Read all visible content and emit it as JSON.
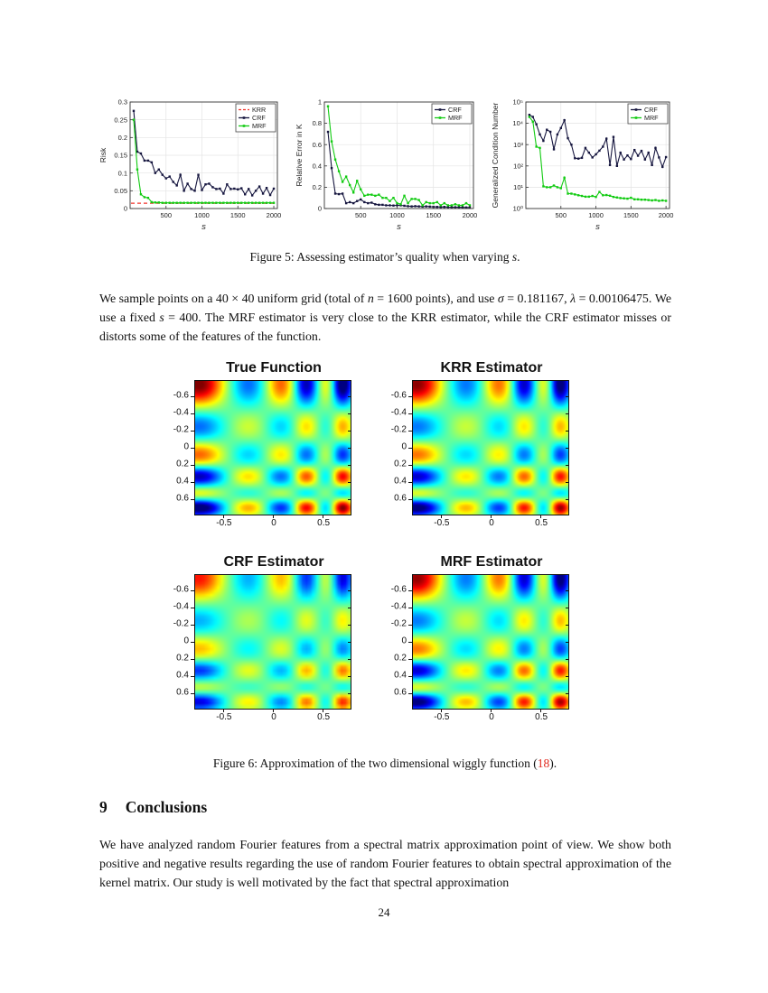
{
  "page": {
    "number": "24"
  },
  "figure5": {
    "caption_text": "Figure 5:  Assessing estimator’s quality when varying ",
    "caption_math": "s",
    "caption_end": "."
  },
  "sampling_paragraph_segments": [
    {
      "t": "We sample points on a 40 × 40 uniform grid (total of "
    },
    {
      "t": "n",
      "i": true
    },
    {
      "t": " = 1600 points), and use "
    },
    {
      "t": "σ",
      "i": true
    },
    {
      "t": " = 0.181167, "
    },
    {
      "t": "λ",
      "i": true
    },
    {
      "t": " = 0.00106475. We use a fixed "
    },
    {
      "t": "s",
      "i": true
    },
    {
      "t": " = 400. The MRF estimator is very close to the KRR estimator, while the CRF estimator misses or distorts some of the features of the function."
    }
  ],
  "figure6": {
    "caption_text": "Figure 6:  Approximation of the two dimensional wiggly function (",
    "caption_link": "18",
    "caption_end": ")."
  },
  "section": {
    "number": "9",
    "title": "Conclusions"
  },
  "conclusions_paragraph": "We have analyzed random Fourier features from a spectral matrix approximation point of view.  We show both positive and negative results regarding the use of random Fourier features to obtain spectral approximation of the kernel matrix. Our study is well motivated by the fact that spectral approximation",
  "chart_data": [
    {
      "type": "line",
      "xlabel": "s",
      "ylabel": "Risk",
      "xlim": [
        0,
        2050
      ],
      "ylim": [
        0,
        0.3
      ],
      "xticks": [
        500,
        1000,
        1500,
        2000
      ],
      "yticks": [
        0,
        0.05,
        0.1,
        0.15,
        0.2,
        0.25,
        0.3
      ],
      "ytick_labels": [
        "0",
        "0.05",
        "0.1",
        "0.15",
        "0.2",
        "0.25",
        "0.3"
      ],
      "grid": true,
      "legend_position": "top-right",
      "x": [
        50,
        100,
        150,
        200,
        250,
        300,
        350,
        400,
        450,
        500,
        550,
        600,
        650,
        700,
        750,
        800,
        850,
        900,
        950,
        1000,
        1050,
        1100,
        1150,
        1200,
        1250,
        1300,
        1350,
        1400,
        1450,
        1500,
        1550,
        1600,
        1650,
        1700,
        1750,
        1800,
        1850,
        1900,
        1950,
        2000
      ],
      "series": [
        {
          "name": "KRR",
          "color": "#f03228",
          "style": "dashed",
          "constant": 0.015
        },
        {
          "name": "CRF",
          "color": "#16163f",
          "style": "solid-marker",
          "values": [
            0.275,
            0.16,
            0.155,
            0.135,
            0.135,
            0.13,
            0.1,
            0.11,
            0.095,
            0.085,
            0.09,
            0.075,
            0.065,
            0.095,
            0.05,
            0.07,
            0.055,
            0.05,
            0.095,
            0.052,
            0.068,
            0.07,
            0.06,
            0.055,
            0.056,
            0.042,
            0.068,
            0.055,
            0.056,
            0.054,
            0.057,
            0.04,
            0.055,
            0.037,
            0.05,
            0.062,
            0.042,
            0.058,
            0.038,
            0.056
          ]
        },
        {
          "name": "MRF",
          "color": "#12cb12",
          "style": "solid-marker",
          "values": [
            0.25,
            0.11,
            0.04,
            0.032,
            0.03,
            0.018,
            0.017,
            0.017,
            0.016,
            0.016,
            0.016,
            0.016,
            0.016,
            0.016,
            0.016,
            0.016,
            0.016,
            0.016,
            0.016,
            0.016,
            0.016,
            0.016,
            0.016,
            0.016,
            0.016,
            0.016,
            0.016,
            0.016,
            0.016,
            0.016,
            0.016,
            0.016,
            0.016,
            0.016,
            0.016,
            0.016,
            0.016,
            0.016,
            0.016,
            0.016
          ]
        }
      ]
    },
    {
      "type": "line",
      "xlabel": "s",
      "ylabel": "Relative Error in K",
      "xlim": [
        0,
        2050
      ],
      "ylim": [
        0,
        1
      ],
      "xticks": [
        500,
        1000,
        1500,
        2000
      ],
      "yticks": [
        0,
        0.2,
        0.4,
        0.6,
        0.8,
        1
      ],
      "ytick_labels": [
        "0",
        "0.2",
        "0.4",
        "0.6",
        "0.8",
        "1"
      ],
      "grid": true,
      "legend_position": "top-right",
      "x": [
        50,
        100,
        150,
        200,
        250,
        300,
        350,
        400,
        450,
        500,
        550,
        600,
        650,
        700,
        750,
        800,
        850,
        900,
        950,
        1000,
        1050,
        1100,
        1150,
        1200,
        1250,
        1300,
        1350,
        1400,
        1450,
        1500,
        1550,
        1600,
        1650,
        1700,
        1750,
        1800,
        1850,
        1900,
        1950,
        2000
      ],
      "series": [
        {
          "name": "CRF",
          "color": "#16163f",
          "style": "solid-marker",
          "values": [
            0.72,
            0.38,
            0.14,
            0.135,
            0.14,
            0.05,
            0.06,
            0.05,
            0.07,
            0.085,
            0.06,
            0.05,
            0.055,
            0.04,
            0.035,
            0.035,
            0.03,
            0.03,
            0.028,
            0.03,
            0.03,
            0.026,
            0.022,
            0.02,
            0.022,
            0.02,
            0.018,
            0.02,
            0.018,
            0.016,
            0.015,
            0.014,
            0.015,
            0.013,
            0.012,
            0.012,
            0.012,
            0.011,
            0.01,
            0.01
          ]
        },
        {
          "name": "MRF",
          "color": "#12cb12",
          "style": "solid-marker",
          "values": [
            0.96,
            0.63,
            0.46,
            0.35,
            0.25,
            0.3,
            0.22,
            0.15,
            0.26,
            0.18,
            0.12,
            0.13,
            0.13,
            0.12,
            0.13,
            0.1,
            0.1,
            0.07,
            0.1,
            0.05,
            0.04,
            0.12,
            0.05,
            0.09,
            0.09,
            0.08,
            0.03,
            0.06,
            0.05,
            0.05,
            0.06,
            0.03,
            0.05,
            0.03,
            0.03,
            0.04,
            0.03,
            0.03,
            0.05,
            0.03
          ]
        }
      ]
    },
    {
      "type": "line",
      "xlabel": "s",
      "ylabel": "Generalized Condition Number",
      "yscale": "log",
      "xlim": [
        0,
        2050
      ],
      "ylim": [
        1,
        100000
      ],
      "xticks": [
        500,
        1000,
        1500,
        2000
      ],
      "yticks": [
        1,
        10,
        100,
        1000,
        10000,
        100000
      ],
      "ytick_labels": [
        "10⁰",
        "10¹",
        "10²",
        "10³",
        "10⁴",
        "10⁵"
      ],
      "grid": true,
      "legend_position": "top-right",
      "x": [
        50,
        100,
        150,
        200,
        250,
        300,
        350,
        400,
        450,
        500,
        550,
        600,
        650,
        700,
        750,
        800,
        850,
        900,
        950,
        1000,
        1050,
        1100,
        1150,
        1200,
        1250,
        1300,
        1350,
        1400,
        1450,
        1500,
        1550,
        1600,
        1650,
        1700,
        1750,
        1800,
        1850,
        1900,
        1950,
        2000
      ],
      "series": [
        {
          "name": "CRF",
          "color": "#16163f",
          "style": "solid-marker",
          "values": [
            25000,
            20000,
            9000,
            3000,
            1500,
            5000,
            4000,
            600,
            3000,
            6000,
            14000,
            2000,
            1000,
            230,
            220,
            240,
            700,
            420,
            250,
            350,
            520,
            800,
            1900,
            110,
            2300,
            100,
            420,
            200,
            310,
            210,
            560,
            300,
            510,
            200,
            420,
            110,
            700,
            250,
            90,
            260
          ]
        },
        {
          "name": "MRF",
          "color": "#12cb12",
          "style": "solid-marker",
          "values": [
            20000,
            12000,
            800,
            700,
            11,
            10,
            10,
            12,
            10,
            9,
            28,
            5,
            5,
            4.6,
            4.2,
            3.9,
            3.6,
            3.6,
            3.9,
            3.5,
            6,
            4.2,
            4.3,
            4,
            3.5,
            3.3,
            3.1,
            3,
            2.9,
            3.2,
            2.7,
            2.7,
            2.6,
            2.6,
            2.5,
            2.4,
            2.5,
            2.3,
            2.4,
            2.3
          ]
        }
      ]
    },
    {
      "type": "heatmap",
      "panels": [
        "True Function",
        "KRR Estimator",
        "CRF Estimator",
        "MRF Estimator"
      ],
      "panel_amplitude": [
        1.0,
        0.96,
        0.72,
        0.94
      ],
      "panel_resolution": [
        [
          92,
          78
        ],
        [
          92,
          78
        ],
        [
          44,
          37
        ],
        [
          92,
          78
        ]
      ],
      "xlim": [
        -0.78,
        0.78
      ],
      "ylim": [
        -0.78,
        0.78
      ],
      "xticks": [
        -0.5,
        0,
        0.5
      ],
      "xtick_labels": [
        "-0.5",
        "0",
        "0.5"
      ],
      "yticks": [
        -0.6,
        -0.4,
        -0.2,
        0,
        0.2,
        0.4,
        0.6
      ],
      "ytick_labels": [
        "-0.6",
        "-0.4",
        "-0.2",
        "0",
        "0.2",
        "0.4",
        "0.6"
      ],
      "colormap": "jet",
      "function": "f(x,y) = g(x)*g(y), g(t) = sum_i a_i*exp(-(t-mu_i)^2/(2*sigma_i^2))",
      "g_bumps": [
        {
          "mu": -0.74,
          "a": 1.35,
          "sigma": 0.17
        },
        {
          "mu": -0.25,
          "a": -0.62,
          "sigma": 0.13
        },
        {
          "mu": 0.08,
          "a": 0.8,
          "sigma": 0.11
        },
        {
          "mu": 0.33,
          "a": -1.1,
          "sigma": 0.085
        },
        {
          "mu": 0.53,
          "a": 0.45,
          "sigma": 0.065
        },
        {
          "mu": 0.7,
          "a": -1.35,
          "sigma": 0.07
        }
      ]
    }
  ]
}
